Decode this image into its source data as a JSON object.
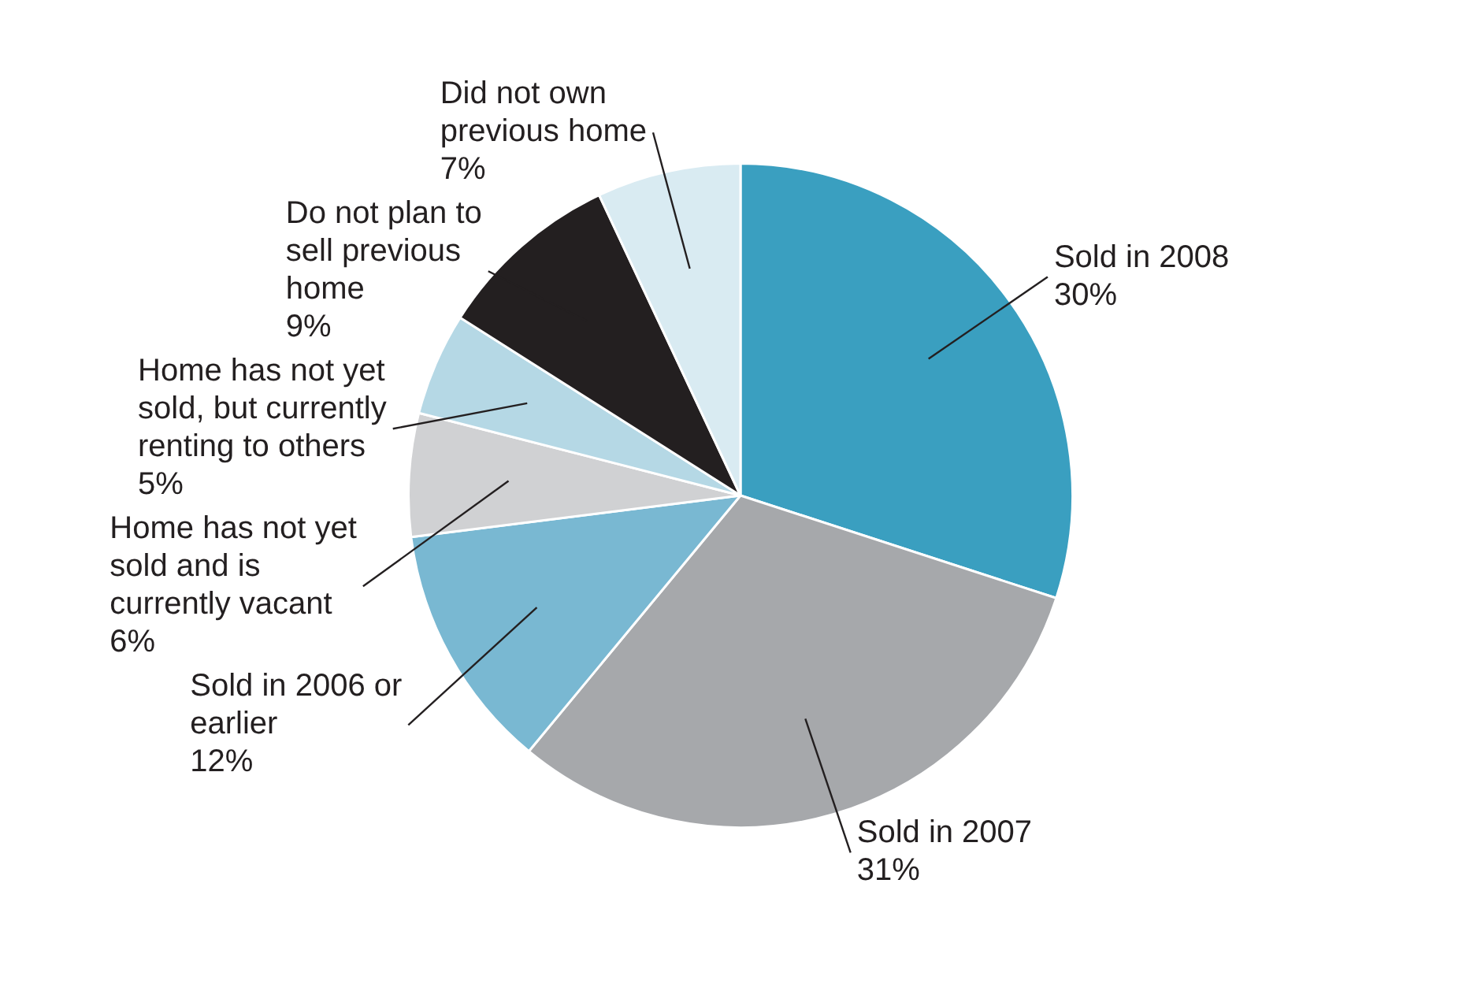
{
  "chart_data": {
    "type": "pie",
    "categories": [
      "Sold in 2008",
      "Sold in 2007",
      "Sold in 2006 or earlier",
      "Home has not yet sold and is currently vacant",
      "Home has not yet sold, but currently renting to others",
      "Do not plan to sell previous home",
      "Did not own previous home"
    ],
    "values": [
      30,
      31,
      12,
      6,
      5,
      9,
      7
    ],
    "value_labels": [
      "30%",
      "31%",
      "12%",
      "6%",
      "5%",
      "9%",
      "7%"
    ],
    "colors": [
      "#3a9fc0",
      "#a6a8ab",
      "#79b8d2",
      "#d0d1d3",
      "#b5d8e5",
      "#231f20",
      "#d9ebf2"
    ],
    "legend": false
  }
}
